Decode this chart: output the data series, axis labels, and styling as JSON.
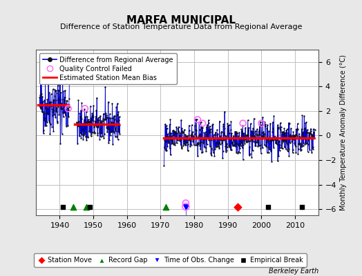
{
  "title": "MARFA MUNICIPAL",
  "subtitle": "Difference of Station Temperature Data from Regional Average",
  "ylabel": "Monthly Temperature Anomaly Difference (°C)",
  "xlabel_note": "Berkeley Earth",
  "ylim": [
    -6.5,
    7.0
  ],
  "xlim": [
    1933,
    2017
  ],
  "yticks": [
    -6,
    -4,
    -2,
    0,
    2,
    4,
    6
  ],
  "xticks": [
    1940,
    1950,
    1960,
    1970,
    1980,
    1990,
    2000,
    2010
  ],
  "bg_color": "#e8e8e8",
  "plot_bg_color": "#ffffff",
  "grid_color": "#c0c0c0",
  "line_color": "#0000cc",
  "dot_color": "#111111",
  "bias_color": "#ff0000",
  "qc_color": "#ff66ff",
  "segments": [
    {
      "x_start": 1933.5,
      "x_end": 1942.5,
      "bias": 2.5
    },
    {
      "x_start": 1944.5,
      "x_end": 1957.5,
      "bias": 0.9
    },
    {
      "x_start": 1971.0,
      "x_end": 2015.5,
      "bias": -0.2
    }
  ],
  "station_moves": [
    1993.0
  ],
  "record_gaps": [
    1944.0,
    1948.0,
    1971.5
  ],
  "obs_changes": [
    1977.5
  ],
  "empirical_breaks": [
    1941.0,
    1949.0,
    2002.0,
    2012.0
  ],
  "obs_change_qc_circle": true,
  "bottom_marker_y": -5.8,
  "seed": 42
}
